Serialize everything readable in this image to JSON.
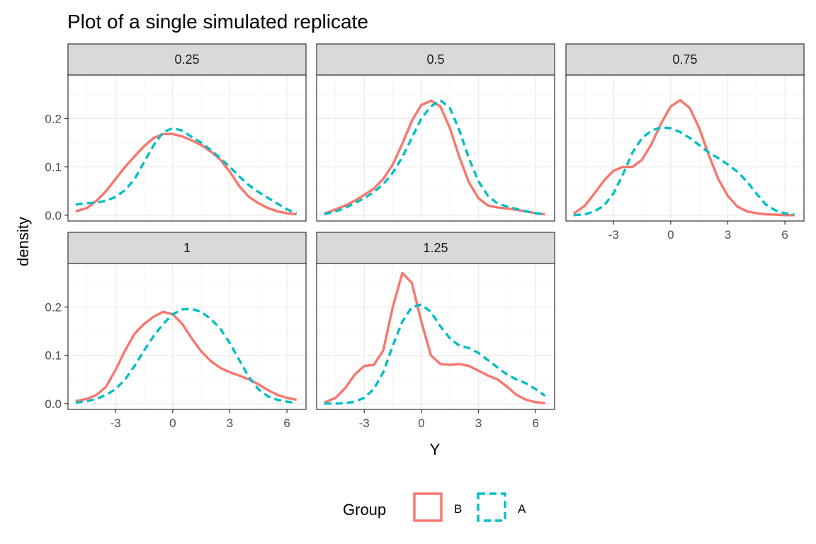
{
  "chart_data": {
    "type": "line",
    "title": "Plot of a single simulated replicate",
    "xlabel": "Y",
    "ylabel": "density",
    "xlim": [
      -5.5,
      7.0
    ],
    "ylim": [
      -0.012,
      0.29
    ],
    "x_ticks": [
      -3,
      0,
      3,
      6
    ],
    "x_tick_labels": [
      "-3",
      "0",
      "3",
      "6"
    ],
    "y_ticks": [
      0.0,
      0.1,
      0.2
    ],
    "y_tick_labels": [
      "0.0",
      "0.1",
      "0.2"
    ],
    "grid": true,
    "legend": {
      "title": "Group",
      "position": "bottom",
      "entries": [
        {
          "name": "B",
          "color": "#F8766D",
          "linestyle": "solid"
        },
        {
          "name": "A",
          "color": "#00BFC4",
          "linestyle": "dashed"
        }
      ]
    },
    "facets": [
      {
        "label": "0.25",
        "series": [
          {
            "name": "B",
            "x": [
              -5.1,
              -4.5,
              -4,
              -3.5,
              -3,
              -2.5,
              -2,
              -1.5,
              -1,
              -0.5,
              0,
              0.5,
              1,
              1.5,
              2,
              2.5,
              3,
              3.5,
              4,
              4.5,
              5,
              5.5,
              6,
              6.5
            ],
            "y": [
              0.008,
              0.015,
              0.03,
              0.05,
              0.075,
              0.1,
              0.122,
              0.143,
              0.16,
              0.168,
              0.168,
              0.163,
              0.155,
              0.145,
              0.132,
              0.115,
              0.09,
              0.06,
              0.038,
              0.025,
              0.015,
              0.008,
              0.004,
              0.002
            ]
          },
          {
            "name": "A",
            "x": [
              -5.1,
              -4.5,
              -4,
              -3.5,
              -3,
              -2.5,
              -2,
              -1.5,
              -1,
              -0.5,
              0,
              0.5,
              1,
              1.5,
              2,
              2.5,
              3,
              3.5,
              4,
              4.5,
              5,
              5.5,
              6,
              6.5
            ],
            "y": [
              0.022,
              0.025,
              0.026,
              0.03,
              0.038,
              0.052,
              0.075,
              0.11,
              0.145,
              0.172,
              0.18,
              0.175,
              0.162,
              0.15,
              0.135,
              0.118,
              0.1,
              0.08,
              0.062,
              0.048,
              0.036,
              0.024,
              0.012,
              0.004
            ]
          }
        ]
      },
      {
        "label": "0.5",
        "series": [
          {
            "name": "B",
            "x": [
              -5.1,
              -4.5,
              -4,
              -3.5,
              -3,
              -2.5,
              -2,
              -1.5,
              -1,
              -0.5,
              0,
              0.5,
              1,
              1.5,
              2,
              2.5,
              3,
              3.5,
              4,
              4.5,
              5,
              5.5,
              6,
              6.5
            ],
            "y": [
              0.003,
              0.012,
              0.02,
              0.03,
              0.042,
              0.055,
              0.075,
              0.105,
              0.148,
              0.195,
              0.228,
              0.237,
              0.225,
              0.18,
              0.12,
              0.068,
              0.035,
              0.02,
              0.016,
              0.014,
              0.011,
              0.008,
              0.004,
              0.002
            ]
          },
          {
            "name": "A",
            "x": [
              -5.1,
              -4.5,
              -4,
              -3.5,
              -3,
              -2.5,
              -2,
              -1.5,
              -1,
              -0.5,
              0,
              0.5,
              1,
              1.5,
              2,
              2.5,
              3,
              3.5,
              4,
              4.5,
              5,
              5.5,
              6,
              6.5
            ],
            "y": [
              0.002,
              0.008,
              0.015,
              0.025,
              0.035,
              0.048,
              0.064,
              0.088,
              0.12,
              0.16,
              0.2,
              0.225,
              0.238,
              0.222,
              0.175,
              0.118,
              0.07,
              0.04,
              0.024,
              0.018,
              0.013,
              0.008,
              0.004,
              0.002
            ]
          }
        ]
      },
      {
        "label": "0.75",
        "series": [
          {
            "name": "B",
            "x": [
              -5.1,
              -4.5,
              -4,
              -3.5,
              -3,
              -2.5,
              -2,
              -1.5,
              -1,
              -0.5,
              0,
              0.5,
              1,
              1.5,
              2,
              2.5,
              3,
              3.5,
              4,
              4.5,
              5,
              5.5,
              6,
              6.5
            ],
            "y": [
              0.003,
              0.02,
              0.045,
              0.072,
              0.092,
              0.1,
              0.1,
              0.115,
              0.148,
              0.19,
              0.225,
              0.238,
              0.222,
              0.18,
              0.125,
              0.075,
              0.04,
              0.018,
              0.008,
              0.004,
              0.002,
              0.001,
              0.0,
              0.0
            ]
          },
          {
            "name": "A",
            "x": [
              -5.1,
              -4.5,
              -4,
              -3.5,
              -3,
              -2.5,
              -2,
              -1.5,
              -1,
              -0.5,
              0,
              0.5,
              1,
              1.5,
              2,
              2.5,
              3,
              3.5,
              4,
              4.5,
              5,
              5.5,
              6,
              6.5
            ],
            "y": [
              0.0,
              0.002,
              0.008,
              0.02,
              0.045,
              0.085,
              0.13,
              0.16,
              0.175,
              0.182,
              0.18,
              0.172,
              0.16,
              0.145,
              0.13,
              0.118,
              0.105,
              0.09,
              0.07,
              0.045,
              0.022,
              0.01,
              0.004,
              0.001
            ]
          }
        ]
      },
      {
        "label": "1",
        "series": [
          {
            "name": "B",
            "x": [
              -5.1,
              -4.5,
              -4,
              -3.5,
              -3,
              -2.5,
              -2,
              -1.5,
              -1,
              -0.5,
              0,
              0.5,
              1,
              1.5,
              2,
              2.5,
              3,
              3.5,
              4,
              4.5,
              5,
              5.5,
              6,
              6.5
            ],
            "y": [
              0.005,
              0.01,
              0.018,
              0.035,
              0.07,
              0.11,
              0.145,
              0.165,
              0.18,
              0.19,
              0.185,
              0.165,
              0.135,
              0.108,
              0.088,
              0.074,
              0.065,
              0.058,
              0.05,
              0.04,
              0.028,
              0.018,
              0.012,
              0.008
            ]
          },
          {
            "name": "A",
            "x": [
              -5.1,
              -4.5,
              -4,
              -3.5,
              -3,
              -2.5,
              -2,
              -1.5,
              -1,
              -0.5,
              0,
              0.5,
              1,
              1.5,
              2,
              2.5,
              3,
              3.5,
              4,
              4.5,
              5,
              5.5,
              6,
              6.5
            ],
            "y": [
              0.002,
              0.005,
              0.01,
              0.018,
              0.03,
              0.05,
              0.078,
              0.11,
              0.14,
              0.165,
              0.185,
              0.195,
              0.196,
              0.19,
              0.175,
              0.155,
              0.125,
              0.09,
              0.055,
              0.03,
              0.015,
              0.008,
              0.004,
              0.002
            ]
          }
        ]
      },
      {
        "label": "1.25",
        "series": [
          {
            "name": "B",
            "x": [
              -5.1,
              -4.5,
              -4,
              -3.5,
              -3,
              -2.5,
              -2,
              -1.5,
              -1,
              -0.5,
              0,
              0.5,
              1,
              1.5,
              2,
              2.5,
              3,
              3.5,
              4,
              4.5,
              5,
              5.5,
              6,
              6.5
            ],
            "y": [
              0.002,
              0.012,
              0.032,
              0.06,
              0.078,
              0.08,
              0.11,
              0.2,
              0.27,
              0.25,
              0.17,
              0.1,
              0.082,
              0.08,
              0.082,
              0.078,
              0.068,
              0.058,
              0.05,
              0.035,
              0.018,
              0.008,
              0.003,
              0.001
            ]
          },
          {
            "name": "A",
            "x": [
              -5.1,
              -4.5,
              -4,
              -3.5,
              -3,
              -2.5,
              -2,
              -1.5,
              -1,
              -0.5,
              0,
              0.5,
              1,
              1.5,
              2,
              2.5,
              3,
              3.5,
              4,
              4.5,
              5,
              5.5,
              6,
              6.5
            ],
            "y": [
              0.0,
              0.0,
              0.001,
              0.004,
              0.012,
              0.03,
              0.065,
              0.12,
              0.17,
              0.2,
              0.205,
              0.19,
              0.16,
              0.135,
              0.12,
              0.115,
              0.105,
              0.09,
              0.075,
              0.06,
              0.05,
              0.042,
              0.03,
              0.016
            ]
          }
        ]
      }
    ]
  }
}
